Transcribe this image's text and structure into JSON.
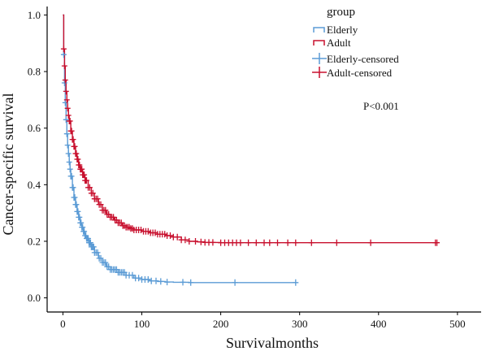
{
  "chart_data": {
    "type": "line",
    "xlabel": "Survivalmonths",
    "ylabel": "Cancer-specific survival",
    "xlim": [
      -20,
      530
    ],
    "ylim": [
      -0.05,
      1.03
    ],
    "x_ticks": [
      0,
      100,
      200,
      300,
      400,
      500
    ],
    "y_ticks": [
      0.0,
      0.2,
      0.4,
      0.6,
      0.8,
      1.0
    ],
    "x_tick_labels": [
      "0",
      "100",
      "200",
      "300",
      "400",
      "500"
    ],
    "y_tick_labels": [
      "0.0",
      "0.2",
      "0.4",
      "0.6",
      "0.8",
      "1.0"
    ],
    "grid": false,
    "legend": {
      "title": "group",
      "position": "top-right",
      "entries": [
        {
          "label": "Elderly",
          "kind": "step",
          "color": "#5b9bd5"
        },
        {
          "label": "Adult",
          "kind": "step",
          "color": "#c8102e"
        },
        {
          "label": "Elderly-censored",
          "kind": "censor",
          "color": "#5b9bd5"
        },
        {
          "label": "Adult-censored",
          "kind": "censor",
          "color": "#c8102e"
        }
      ]
    },
    "annotation": "P<0.001",
    "series": [
      {
        "name": "Elderly",
        "color": "#5b9bd5",
        "x": [
          0,
          1,
          2,
          3,
          4,
          5,
          6,
          7,
          8,
          9,
          10,
          12,
          14,
          16,
          18,
          20,
          22,
          24,
          26,
          28,
          30,
          33,
          36,
          40,
          45,
          50,
          55,
          60,
          70,
          80,
          90,
          100,
          110,
          120,
          130,
          140,
          160,
          200,
          250,
          295
        ],
        "y": [
          1.0,
          0.86,
          0.76,
          0.69,
          0.63,
          0.58,
          0.54,
          0.51,
          0.48,
          0.455,
          0.43,
          0.39,
          0.355,
          0.33,
          0.305,
          0.285,
          0.265,
          0.25,
          0.235,
          0.22,
          0.21,
          0.195,
          0.18,
          0.16,
          0.14,
          0.125,
          0.11,
          0.1,
          0.09,
          0.08,
          0.07,
          0.065,
          0.06,
          0.058,
          0.056,
          0.055,
          0.054,
          0.054,
          0.054,
          0.054
        ],
        "censored_x": [
          1,
          2,
          3,
          4,
          5,
          6,
          7,
          8,
          9,
          10,
          11,
          12,
          13,
          14,
          15,
          16,
          17,
          18,
          19,
          20,
          21,
          22,
          23,
          24,
          25,
          26,
          27,
          28,
          29,
          30,
          31,
          32,
          33,
          34,
          35,
          36,
          37,
          38,
          39,
          40,
          42,
          44,
          46,
          48,
          50,
          52,
          54,
          56,
          58,
          60,
          62,
          64,
          66,
          68,
          70,
          72,
          74,
          76,
          78,
          80,
          84,
          88,
          92,
          96,
          100,
          104,
          108,
          112,
          118,
          124,
          132,
          152,
          162,
          218,
          295
        ]
      },
      {
        "name": "Adult",
        "color": "#c8102e",
        "x": [
          0,
          1,
          2,
          3,
          4,
          5,
          6,
          7,
          8,
          10,
          12,
          14,
          16,
          18,
          20,
          22,
          25,
          28,
          32,
          36,
          40,
          45,
          50,
          55,
          60,
          65,
          70,
          75,
          80,
          85,
          90,
          100,
          110,
          120,
          130,
          140,
          150,
          160,
          170,
          180,
          200,
          250,
          300,
          350,
          400,
          474
        ],
        "y": [
          1.0,
          0.88,
          0.82,
          0.77,
          0.73,
          0.7,
          0.67,
          0.645,
          0.625,
          0.59,
          0.56,
          0.535,
          0.51,
          0.49,
          0.47,
          0.455,
          0.435,
          0.415,
          0.39,
          0.37,
          0.35,
          0.33,
          0.31,
          0.295,
          0.285,
          0.275,
          0.265,
          0.255,
          0.25,
          0.245,
          0.24,
          0.235,
          0.23,
          0.225,
          0.22,
          0.215,
          0.205,
          0.2,
          0.198,
          0.196,
          0.195,
          0.195,
          0.195,
          0.195,
          0.195,
          0.195
        ],
        "censored_x": [
          1,
          2,
          3,
          4,
          5,
          6,
          7,
          8,
          9,
          10,
          11,
          12,
          13,
          14,
          15,
          16,
          17,
          18,
          19,
          20,
          21,
          22,
          23,
          24,
          25,
          26,
          27,
          28,
          29,
          30,
          32,
          34,
          36,
          38,
          40,
          42,
          44,
          46,
          48,
          50,
          52,
          54,
          56,
          58,
          60,
          62,
          64,
          66,
          68,
          70,
          72,
          74,
          76,
          78,
          80,
          82,
          84,
          86,
          88,
          90,
          93,
          96,
          99,
          102,
          105,
          108,
          111,
          114,
          117,
          120,
          123,
          126,
          129,
          132,
          136,
          140,
          145,
          150,
          155,
          160,
          168,
          175,
          180,
          185,
          190,
          200,
          205,
          210,
          215,
          220,
          225,
          235,
          245,
          255,
          262,
          272,
          285,
          295,
          315,
          347,
          390,
          472,
          474
        ]
      }
    ]
  }
}
